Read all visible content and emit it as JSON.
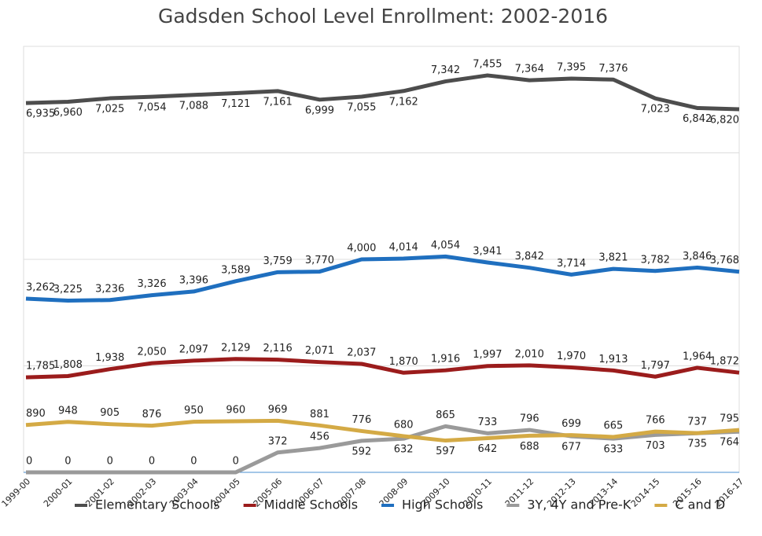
{
  "chart_data": {
    "type": "line",
    "title": "Gadsden School Level Enrollment: 2002-2016",
    "categories": [
      "1999-00",
      "2000-01",
      "2001-02",
      "2002-03",
      "2003-04",
      "2004-05",
      "2005-06",
      "2006-07",
      "2007-08",
      "2008-09",
      "2009-10",
      "2010-11",
      "2011-12",
      "2012-13",
      "2013-14",
      "2014-15",
      "2015-16",
      "2016-17"
    ],
    "ylim": [
      0,
      8000
    ],
    "yticks": [
      0,
      2000,
      4000,
      6000,
      8000
    ],
    "grid": true,
    "legend": "bottom",
    "series": [
      {
        "name": "Elementary Schools",
        "color": "#4d4d4d",
        "values": [
          6935,
          6960,
          7025,
          7054,
          7088,
          7121,
          7161,
          6999,
          7055,
          7162,
          7342,
          7455,
          7364,
          7395,
          7376,
          7023,
          6842,
          6820
        ],
        "value_labels": [
          "6,935",
          "6,960",
          "7,025",
          "7,054",
          "7,088",
          "7,121",
          "7,161",
          "6,999",
          "7,055",
          "7,162",
          "7,342",
          "7,455",
          "7,364",
          "7,395",
          "7,376",
          "7,023",
          "6,842",
          "6,820"
        ]
      },
      {
        "name": "Middle Schools",
        "color": "#9b1c1c",
        "values": [
          1785,
          1808,
          1938,
          2050,
          2097,
          2129,
          2116,
          2071,
          2037,
          1870,
          1916,
          1997,
          2010,
          1970,
          1913,
          1797,
          1964,
          1872
        ],
        "value_labels": [
          "1,785",
          "1,808",
          "1,938",
          "2,050",
          "2,097",
          "2,129",
          "2,116",
          "2,071",
          "2,037",
          "1,870",
          "1,916",
          "1,997",
          "2,010",
          "1,970",
          "1,913",
          "1,797",
          "1,964",
          "1,872"
        ]
      },
      {
        "name": "High Schools",
        "color": "#1f6fbf",
        "values": [
          3262,
          3225,
          3236,
          3326,
          3396,
          3589,
          3759,
          3770,
          4000,
          4014,
          4054,
          3941,
          3842,
          3714,
          3821,
          3782,
          3846,
          3768
        ],
        "value_labels": [
          "3,262",
          "3,225",
          "3,236",
          "3,326",
          "3,396",
          "3,589",
          "3,759",
          "3,770",
          "4,000",
          "4,014",
          "4,054",
          "3,941",
          "3,842",
          "3,714",
          "3,821",
          "3,782",
          "3,846",
          "3,768"
        ]
      },
      {
        "name": "3Y, 4Y and Pre-K",
        "color": "#9a9a9a",
        "values": [
          0,
          0,
          0,
          0,
          0,
          0,
          372,
          456,
          592,
          632,
          865,
          733,
          796,
          677,
          633,
          703,
          735,
          764
        ]
      },
      {
        "name": "C and D",
        "color": "#d4aa45",
        "values": [
          890,
          948,
          905,
          876,
          950,
          960,
          969,
          881,
          776,
          680,
          597,
          642,
          688,
          699,
          665,
          766,
          737,
          795
        ]
      }
    ]
  }
}
